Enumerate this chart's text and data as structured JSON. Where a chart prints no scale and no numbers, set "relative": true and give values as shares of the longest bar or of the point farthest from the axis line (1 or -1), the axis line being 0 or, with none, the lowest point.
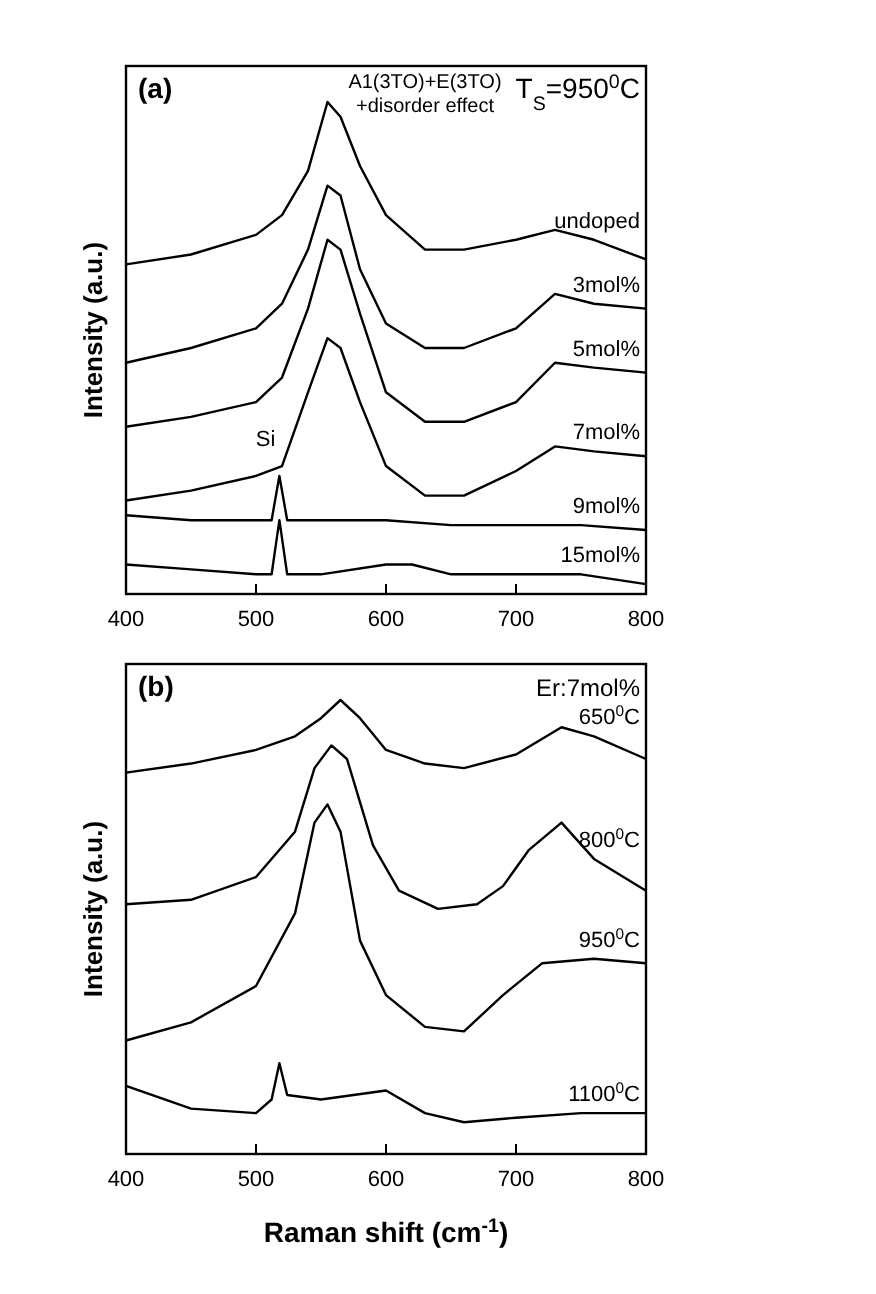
{
  "chart_data": [
    {
      "type": "line",
      "title": "(a)",
      "ylabel": "Intensity (a.u.)",
      "relative": true,
      "xlim": [
        400,
        800
      ],
      "xticks": [
        400,
        500,
        600,
        700,
        800
      ],
      "marker": "none",
      "line_style": "solid",
      "annotations": [
        "A1(3TO)+E(3TO)",
        "+disorder effect",
        "T$_{S}$=950$^{0}$C",
        {
          "text": "Si",
          "x": 518,
          "y": 0.3
        }
      ],
      "series": [
        {
          "name": "undoped",
          "color": "#000000",
          "x": [
            400,
            450,
            500,
            520,
            540,
            555,
            565,
            580,
            600,
            630,
            660,
            700,
            730,
            760,
            800
          ],
          "values": [
            0.67,
            0.69,
            0.73,
            0.77,
            0.86,
            1.0,
            0.97,
            0.87,
            0.77,
            0.7,
            0.7,
            0.72,
            0.74,
            0.72,
            0.68
          ]
        },
        {
          "name": "3mol%",
          "color": "#000000",
          "x": [
            400,
            450,
            500,
            520,
            540,
            555,
            565,
            580,
            600,
            630,
            660,
            700,
            730,
            760,
            800
          ],
          "values": [
            0.47,
            0.5,
            0.54,
            0.59,
            0.7,
            0.83,
            0.81,
            0.66,
            0.55,
            0.5,
            0.5,
            0.54,
            0.61,
            0.59,
            0.58
          ]
        },
        {
          "name": "5mol%",
          "color": "#000000",
          "x": [
            400,
            450,
            500,
            520,
            540,
            555,
            565,
            580,
            600,
            630,
            660,
            700,
            730,
            760,
            800
          ],
          "values": [
            0.34,
            0.36,
            0.39,
            0.44,
            0.58,
            0.72,
            0.7,
            0.57,
            0.41,
            0.35,
            0.35,
            0.39,
            0.47,
            0.46,
            0.45
          ]
        },
        {
          "name": "7mol%",
          "color": "#000000",
          "x": [
            400,
            450,
            500,
            520,
            540,
            555,
            565,
            580,
            600,
            630,
            660,
            700,
            730,
            760,
            800
          ],
          "values": [
            0.19,
            0.21,
            0.24,
            0.26,
            0.41,
            0.52,
            0.5,
            0.39,
            0.26,
            0.2,
            0.2,
            0.25,
            0.3,
            0.29,
            0.28
          ]
        },
        {
          "name": "9mol%",
          "color": "#000000",
          "x": [
            400,
            450,
            500,
            512,
            518,
            524,
            550,
            600,
            650,
            700,
            750,
            800
          ],
          "values": [
            0.16,
            0.15,
            0.15,
            0.15,
            0.24,
            0.15,
            0.15,
            0.15,
            0.14,
            0.14,
            0.14,
            0.13
          ]
        },
        {
          "name": "15mol%",
          "color": "#000000",
          "x": [
            400,
            450,
            500,
            512,
            518,
            524,
            550,
            600,
            620,
            650,
            700,
            750,
            800
          ],
          "values": [
            0.06,
            0.05,
            0.04,
            0.04,
            0.15,
            0.04,
            0.04,
            0.06,
            0.06,
            0.04,
            0.04,
            0.04,
            0.02
          ]
        }
      ]
    },
    {
      "type": "line",
      "title": "(b)",
      "ylabel": "Intensity (a.u.)",
      "xlabel": "Raman shift (cm$^{-1}$)",
      "relative": true,
      "xlim": [
        400,
        800
      ],
      "xticks": [
        400,
        500,
        600,
        700,
        800
      ],
      "marker": "none",
      "line_style": "solid",
      "annotations": [
        "Er:7mol%"
      ],
      "series": [
        {
          "name": "650$^{0}$C",
          "color": "#000000",
          "x": [
            400,
            450,
            500,
            530,
            550,
            565,
            580,
            600,
            630,
            660,
            700,
            735,
            760,
            800
          ],
          "values": [
            0.84,
            0.86,
            0.89,
            0.92,
            0.96,
            1.0,
            0.96,
            0.89,
            0.86,
            0.85,
            0.88,
            0.94,
            0.92,
            0.87
          ]
        },
        {
          "name": "800$^{0}$C",
          "color": "#000000",
          "x": [
            400,
            450,
            500,
            530,
            545,
            558,
            570,
            590,
            610,
            640,
            670,
            690,
            710,
            735,
            760,
            800
          ],
          "values": [
            0.55,
            0.56,
            0.61,
            0.71,
            0.85,
            0.9,
            0.87,
            0.68,
            0.58,
            0.54,
            0.55,
            0.59,
            0.67,
            0.73,
            0.65,
            0.58
          ]
        },
        {
          "name": "950$^{0}$C",
          "color": "#000000",
          "x": [
            400,
            450,
            500,
            530,
            545,
            555,
            565,
            580,
            600,
            630,
            660,
            690,
            720,
            760,
            800
          ],
          "values": [
            0.25,
            0.29,
            0.37,
            0.53,
            0.73,
            0.77,
            0.71,
            0.47,
            0.35,
            0.28,
            0.27,
            0.35,
            0.42,
            0.43,
            0.42
          ]
        },
        {
          "name": "1100$^{0}$C",
          "color": "#000000",
          "x": [
            400,
            450,
            500,
            512,
            518,
            524,
            550,
            600,
            630,
            660,
            700,
            750,
            800
          ],
          "values": [
            0.15,
            0.1,
            0.09,
            0.12,
            0.2,
            0.13,
            0.12,
            0.14,
            0.09,
            0.07,
            0.08,
            0.09,
            0.09
          ]
        }
      ]
    }
  ]
}
